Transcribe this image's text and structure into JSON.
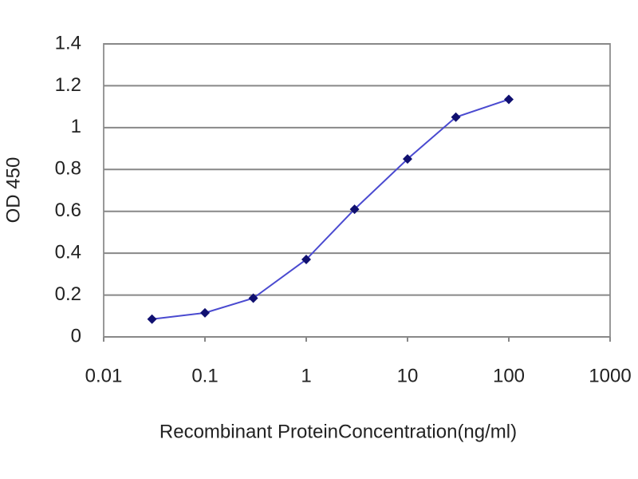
{
  "chart_data": {
    "type": "line",
    "xlabel": "Recombinant ProteinConcentration(ng/ml)",
    "ylabel": "OD 450",
    "x": [
      0.03,
      0.1,
      0.3,
      1,
      3,
      10,
      30,
      100
    ],
    "values": [
      0.085,
      0.115,
      0.185,
      0.37,
      0.61,
      0.85,
      1.05,
      1.135
    ],
    "color": "#4a4ad0",
    "marker_color": "#101070",
    "xscale": "log",
    "xlim": [
      0.01,
      1000
    ],
    "xticks": [
      0.01,
      0.1,
      1,
      10,
      100,
      1000
    ],
    "ylim": [
      0,
      1.4
    ],
    "yticks": [
      0,
      0.2,
      0.4,
      0.6,
      0.8,
      1,
      1.2,
      1.4
    ],
    "grid": true
  }
}
